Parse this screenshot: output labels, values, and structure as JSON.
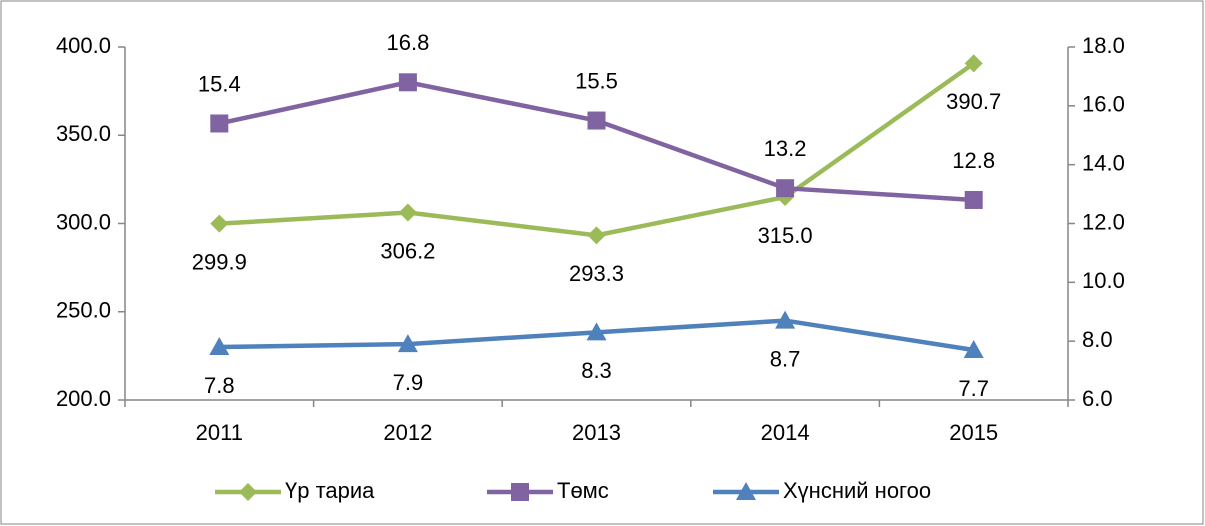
{
  "chart_data": {
    "type": "line",
    "categories": [
      "2011",
      "2012",
      "2013",
      "2014",
      "2015"
    ],
    "series": [
      {
        "name": "Үр тариа",
        "color": "#9bbb59",
        "marker": "diamond",
        "values": [
          299.9,
          306.2,
          293.3,
          315.0,
          390.7
        ],
        "value_labels": [
          "299.9",
          "306.2",
          "293.3",
          "315.0",
          "390.7"
        ],
        "label_position": "below"
      },
      {
        "name": "Төмс",
        "color": "#8064a2",
        "marker": "square",
        "axis": "y2",
        "values": [
          15.4,
          16.8,
          15.5,
          13.2,
          12.8
        ],
        "value_labels": [
          "15.4",
          "16.8",
          "15.5",
          "13.2",
          "12.8"
        ],
        "label_position": "above"
      },
      {
        "name": "Хүнсний ногоо",
        "color": "#4f81bd",
        "marker": "triangle",
        "axis": "y2",
        "values": [
          7.8,
          7.9,
          8.3,
          8.7,
          7.7
        ],
        "value_labels": [
          "7.8",
          "7.9",
          "8.3",
          "8.7",
          "7.7"
        ],
        "label_position": "below"
      }
    ],
    "ylim": [
      200,
      400
    ],
    "yticks": [
      {
        "value": 200,
        "label": "200.0"
      },
      {
        "value": 250,
        "label": "250.0"
      },
      {
        "value": 300,
        "label": "300.0"
      },
      {
        "value": 350,
        "label": "350.0"
      },
      {
        "value": 400,
        "label": "400.0"
      }
    ],
    "y2lim": [
      6,
      18
    ],
    "y2ticks": [
      {
        "value": 6,
        "label": "6.0"
      },
      {
        "value": 8,
        "label": "8.0"
      },
      {
        "value": 10,
        "label": "10.0"
      },
      {
        "value": 12,
        "label": "12.0"
      },
      {
        "value": 14,
        "label": "14.0"
      },
      {
        "value": 16,
        "label": "16.0"
      },
      {
        "value": 18,
        "label": "18.0"
      }
    ],
    "grid": false,
    "legend": "bottom"
  }
}
